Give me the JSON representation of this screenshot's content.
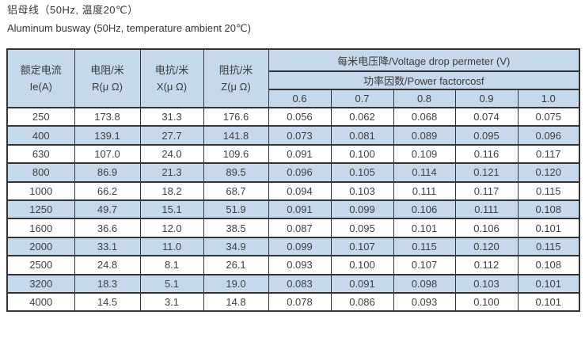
{
  "page": {
    "title_zh": "铝母线（50Hz, 温度20℃）",
    "title_en": "Aluminum busway (50Hz, temperature ambient 20℃)"
  },
  "colors": {
    "header_bg": "#c6d9ec",
    "row_alt_bg": "#c6d9ec",
    "border": "#333333",
    "text": "#3d3d3d"
  },
  "table": {
    "headers": {
      "col1_line1": "额定电流",
      "col1_line2": "Ie(A)",
      "col2_line1": "电阻/米",
      "col2_line2": "R(μ Ω)",
      "col3_line1": "电抗/米",
      "col3_line2": "X(μ Ω)",
      "col4_line1": "阻抗/米",
      "col4_line2": "Z(μ Ω)",
      "voltage_drop": "每米电压降/Voltage drop permeter (V)",
      "power_factor": "功率因数/Power factorcosf",
      "pf_values": [
        "0.6",
        "0.7",
        "0.8",
        "0.9",
        "1.0"
      ]
    },
    "rows": [
      [
        "250",
        "173.8",
        "31.3",
        "176.6",
        "0.056",
        "0.062",
        "0.068",
        "0.074",
        "0.075"
      ],
      [
        "400",
        "139.1",
        "27.7",
        "141.8",
        "0.073",
        "0.081",
        "0.089",
        "0.095",
        "0.096"
      ],
      [
        "630",
        "107.0",
        "24.0",
        "109.6",
        "0.091",
        "0.100",
        "0.109",
        "0.116",
        "0.117"
      ],
      [
        "800",
        "86.9",
        "21.3",
        "89.5",
        "0.096",
        "0.105",
        "0.114",
        "0.121",
        "0.120"
      ],
      [
        "1000",
        "66.2",
        "18.2",
        "68.7",
        "0.094",
        "0.103",
        "0.111",
        "0.117",
        "0.115"
      ],
      [
        "1250",
        "49.7",
        "15.1",
        "51.9",
        "0.091",
        "0.099",
        "0.106",
        "0.111",
        "0.108"
      ],
      [
        "1600",
        "36.6",
        "12.0",
        "38.5",
        "0.087",
        "0.095",
        "0.101",
        "0.106",
        "0.101"
      ],
      [
        "2000",
        "33.1",
        "11.0",
        "34.9",
        "0.099",
        "0.107",
        "0.115",
        "0.120",
        "0.115"
      ],
      [
        "2500",
        "24.8",
        "8.1",
        "26.1",
        "0.093",
        "0.100",
        "0.107",
        "0.112",
        "0.108"
      ],
      [
        "3200",
        "18.3",
        "5.1",
        "19.0",
        "0.083",
        "0.091",
        "0.098",
        "0.103",
        "0.101"
      ],
      [
        "4000",
        "14.5",
        "3.1",
        "14.8",
        "0.078",
        "0.086",
        "0.093",
        "0.100",
        "0.101"
      ]
    ]
  }
}
